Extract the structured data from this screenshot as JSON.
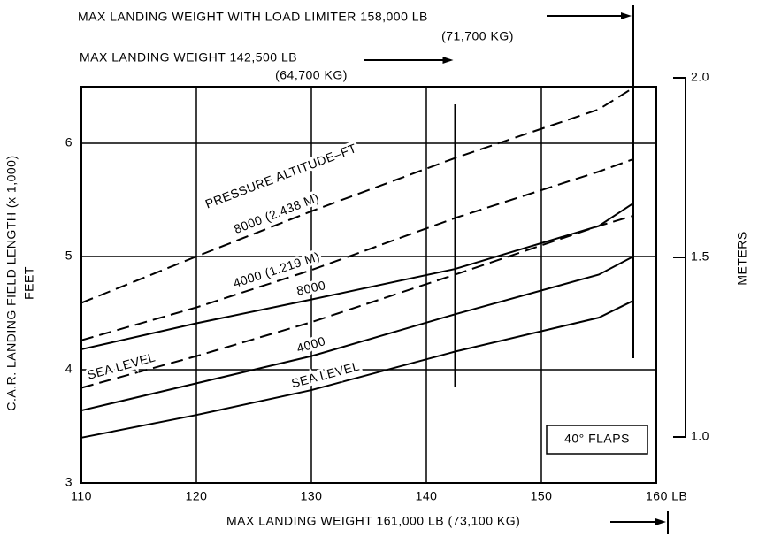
{
  "chart_data": {
    "type": "line",
    "title": "PRESSURE ALTITUDE–FT",
    "ylabel": "C.A.R. LANDING FIELD LENGTH (x 1,000)",
    "ylabel2": "FEET",
    "y2label": "METERS",
    "note": "40° FLAPS",
    "x": [
      110,
      120,
      130,
      142.5,
      155,
      158
    ],
    "xlim": [
      110,
      160
    ],
    "xticks": [
      110,
      120,
      130,
      140,
      150,
      {
        "value": 160,
        "label": "160 LB"
      }
    ],
    "ylim": [
      3,
      6.5
    ],
    "yticks": [
      3,
      4,
      5,
      6
    ],
    "y2lim": [
      1.0,
      2.0
    ],
    "y2ticks": [
      {
        "value": 1.0,
        "label": "1.0"
      },
      1.5,
      {
        "value": 2.0,
        "label": "2.0"
      }
    ],
    "grid": true,
    "series": [
      {
        "name": "8000 (2,438 M)",
        "color": "#000000",
        "style": "dashed",
        "values": [
          4.59,
          5.0,
          5.4,
          5.87,
          6.3,
          6.49
        ]
      },
      {
        "name": "4000 (1,219 M)",
        "color": "#000000",
        "style": "dashed",
        "values": [
          4.26,
          4.55,
          4.88,
          5.34,
          5.75,
          5.86
        ]
      },
      {
        "name": "SEA LEVEL",
        "color": "#000000",
        "style": "dashed",
        "values": [
          3.84,
          4.12,
          4.42,
          4.84,
          5.27,
          5.36
        ]
      },
      {
        "name": "8000",
        "color": "#000000",
        "style": "solid",
        "values": [
          4.18,
          4.41,
          4.62,
          4.89,
          5.27,
          5.47
        ]
      },
      {
        "name": "4000",
        "color": "#000000",
        "style": "solid",
        "values": [
          3.64,
          3.88,
          4.12,
          4.49,
          4.84,
          5.0
        ]
      },
      {
        "name": "SEA LEVEL",
        "color": "#000000",
        "style": "solid",
        "values": [
          3.4,
          3.6,
          3.82,
          4.16,
          4.46,
          4.61
        ]
      }
    ],
    "annotations": [
      {
        "text": "MAX LANDING WEIGHT WITH LOAD LIMITER 158,000 LB",
        "subtext": "(71,700 KG)",
        "x": 158
      },
      {
        "text": "MAX LANDING WEIGHT 142,500 LB",
        "subtext": "(64,700 KG)",
        "x": 142.5
      },
      {
        "text": "MAX LANDING WEIGHT 161,000 LB (73,100 KG)",
        "x": 161
      }
    ]
  }
}
